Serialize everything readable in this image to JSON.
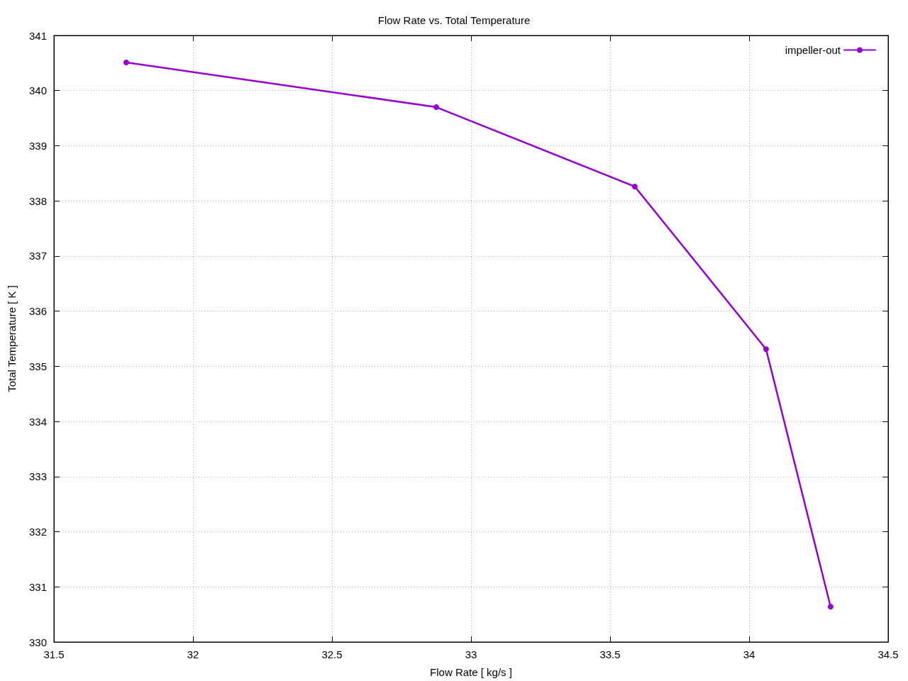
{
  "chart_data": {
    "type": "line",
    "title": "Flow Rate vs. Total Temperature",
    "xlabel": "Flow Rate [ kg/s ]",
    "ylabel": "Total Temperature [ K ]",
    "x": [
      31.76,
      32.875,
      33.589,
      34.061,
      34.293
    ],
    "series": [
      {
        "name": "impeller-out",
        "color": "#9400d3",
        "values": [
          340.51,
          339.7,
          338.26,
          335.31,
          330.64
        ]
      }
    ],
    "xlim": [
      31.5,
      34.5
    ],
    "xticks": [
      31.5,
      32,
      32.5,
      33,
      33.5,
      34,
      34.5
    ],
    "ylim": [
      330,
      341
    ],
    "yticks": [
      330,
      331,
      332,
      333,
      334,
      335,
      336,
      337,
      338,
      339,
      340,
      341
    ],
    "grid": true,
    "legend": "top right",
    "marker": "circle",
    "line_style": "solid"
  }
}
